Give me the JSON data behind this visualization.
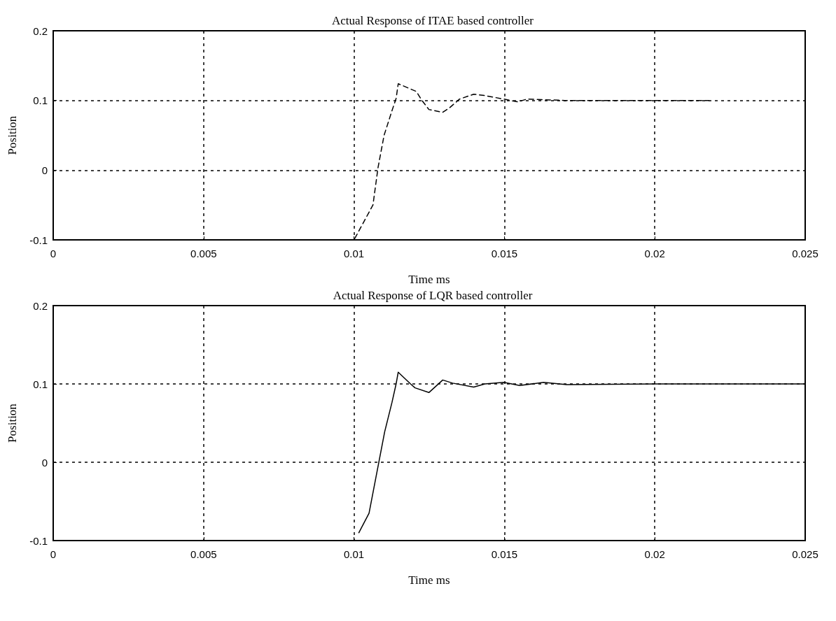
{
  "chart_data": [
    {
      "type": "line",
      "title": "Actual Response of ITAE based controller",
      "xlabel": "Time ms",
      "ylabel": "Position",
      "color": "#000000",
      "line_style": "dashed",
      "marker": "none",
      "grid": true,
      "x": [
        0,
        0.01,
        0.01063,
        0.0108,
        0.011,
        0.01126,
        0.0114,
        0.01147,
        0.01207,
        0.01226,
        0.01249,
        0.01295,
        0.01319,
        0.01351,
        0.01398,
        0.01435,
        0.01498,
        0.01544,
        0.01575,
        0.017,
        0.019,
        0.0218
      ],
      "values": [
        -0.1,
        -0.1,
        -0.05,
        0.004,
        0.05,
        0.085,
        0.103,
        0.124,
        0.113,
        0.1,
        0.087,
        0.083,
        0.09,
        0.102,
        0.109,
        0.107,
        0.102,
        0.098,
        0.102,
        0.1,
        0.1,
        0.1
      ],
      "xlim": [
        0,
        0.025
      ],
      "xticks": [
        0,
        0.005,
        0.01,
        0.015,
        0.02,
        0.025
      ],
      "ylim": [
        -0.1,
        0.2
      ],
      "yticks": [
        -0.1,
        0,
        0.1,
        0.2
      ]
    },
    {
      "type": "line",
      "title": "Actual Response of LQR based controller",
      "xlabel": "Time ms",
      "ylabel": "Position",
      "color": "#000000",
      "line_style": "solid",
      "marker": "none",
      "grid": true,
      "x": [
        0,
        0.00202,
        0.005,
        0.01016,
        0.0105,
        0.01102,
        0.01126,
        0.0114,
        0.01147,
        0.01188,
        0.01203,
        0.01249,
        0.01295,
        0.01328,
        0.01398,
        0.01435,
        0.01498,
        0.01551,
        0.0163,
        0.01707,
        0.02,
        0.025
      ],
      "values": [
        -0.1,
        -0.1,
        null,
        -0.09,
        -0.065,
        0.039,
        0.076,
        0.1,
        0.115,
        0.1,
        0.095,
        0.089,
        0.105,
        0.101,
        0.096,
        0.1,
        0.102,
        0.098,
        0.102,
        0.099,
        0.1,
        0.1
      ],
      "xlim": [
        0,
        0.025
      ],
      "xticks": [
        0,
        0.005,
        0.01,
        0.015,
        0.02,
        0.025
      ],
      "ylim": [
        -0.1,
        0.2
      ],
      "yticks": [
        -0.1,
        0,
        0.1,
        0.2
      ]
    }
  ]
}
